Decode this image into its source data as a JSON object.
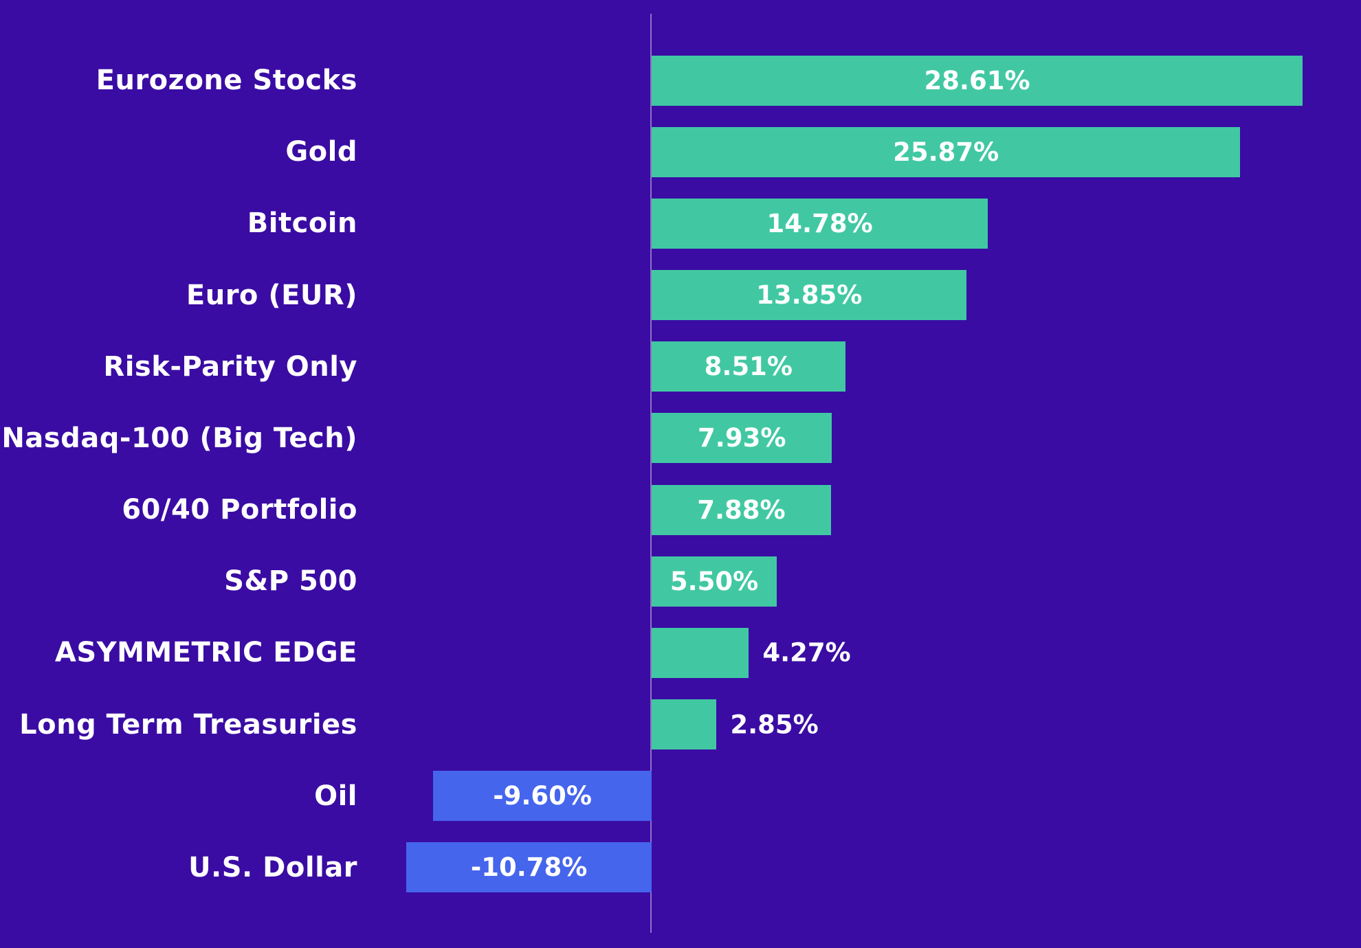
{
  "chart_data": {
    "type": "bar",
    "orientation": "horizontal",
    "title": "",
    "xlabel": "",
    "ylabel": "",
    "grid": false,
    "legend": false,
    "xlim": [
      -12,
      31.5
    ],
    "categories": [
      "Eurozone Stocks",
      "Gold",
      "Bitcoin",
      "Euro (EUR)",
      "Risk-Parity Only",
      "Nasdaq-100 (Big Tech)",
      "60/40 Portfolio",
      "S&P 500",
      "ASYMMETRIC EDGE",
      "Long Term Treasuries",
      "Oil",
      "U.S. Dollar"
    ],
    "values": [
      28.61,
      25.87,
      14.78,
      13.85,
      8.51,
      7.93,
      7.88,
      5.5,
      4.27,
      2.85,
      -9.6,
      -10.78
    ],
    "items": [
      {
        "label": "Eurozone Stocks",
        "value": 28.61,
        "display": "28.61%",
        "label_placement": "inside"
      },
      {
        "label": "Gold",
        "value": 25.87,
        "display": "25.87%",
        "label_placement": "inside"
      },
      {
        "label": "Bitcoin",
        "value": 14.78,
        "display": "14.78%",
        "label_placement": "inside"
      },
      {
        "label": "Euro (EUR)",
        "value": 13.85,
        "display": "13.85%",
        "label_placement": "inside"
      },
      {
        "label": "Risk-Parity Only",
        "value": 8.51,
        "display": "8.51%",
        "label_placement": "inside"
      },
      {
        "label": "Nasdaq-100 (Big Tech)",
        "value": 7.93,
        "display": "7.93%",
        "label_placement": "inside"
      },
      {
        "label": "60/40 Portfolio",
        "value": 7.88,
        "display": "7.88%",
        "label_placement": "inside"
      },
      {
        "label": "S&P 500",
        "value": 5.5,
        "display": "5.50%",
        "label_placement": "inside"
      },
      {
        "label": "ASYMMETRIC EDGE",
        "value": 4.27,
        "display": "4.27%",
        "label_placement": "outside"
      },
      {
        "label": "Long Term Treasuries",
        "value": 2.85,
        "display": "2.85%",
        "label_placement": "outside"
      },
      {
        "label": "Oil",
        "value": -9.6,
        "display": "-9.60%",
        "label_placement": "inside"
      },
      {
        "label": "U.S. Dollar",
        "value": -10.78,
        "display": "-10.78%",
        "label_placement": "inside"
      }
    ],
    "colors": {
      "background": "#3A0CA3",
      "positive_bar": "#41C8A3",
      "negative_bar": "#4565EC",
      "category_text": "#FFFFFF",
      "value_text": "#FFFFFF",
      "zero_line": "rgba(255,255,255,0.42)"
    }
  }
}
